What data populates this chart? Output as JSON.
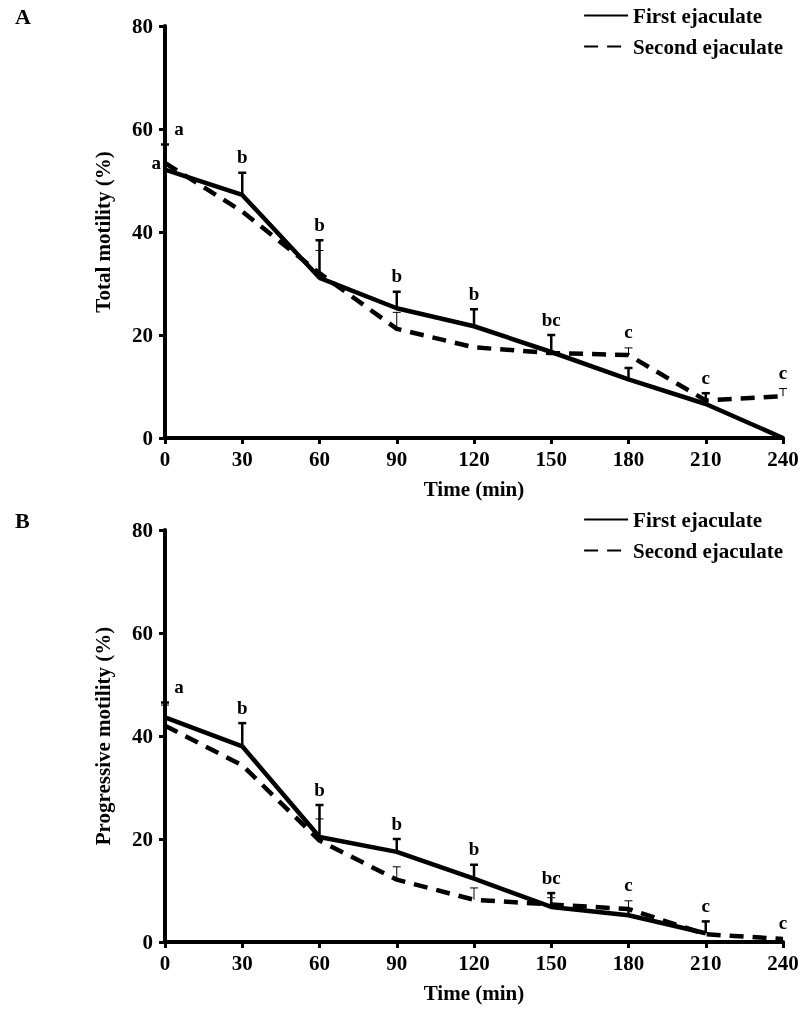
{
  "chart_data": [
    {
      "type": "line",
      "title": "A",
      "xlabel": "Time (min)",
      "ylabel": "Total motility (%)",
      "x": [
        0,
        30,
        60,
        90,
        120,
        150,
        180,
        210,
        240
      ],
      "xlim": [
        0,
        240
      ],
      "xticks": [
        0,
        30,
        60,
        90,
        120,
        150,
        180,
        210,
        240
      ],
      "ylim": [
        0,
        80
      ],
      "yticks": [
        0,
        20,
        40,
        60,
        80
      ],
      "grid": false,
      "legend": "top right",
      "marker": "none",
      "series": [
        {
          "name": "First ejaculate",
          "color": "#000000",
          "line_style": "solid",
          "values": [
            52.1,
            47.2,
            31.1,
            25.2,
            21.7,
            16.7,
            11.4,
            6.6,
            0
          ],
          "errors": [
            [
              52.1,
              57
            ],
            [
              47.2,
              51.5
            ],
            [
              31.1,
              38.4
            ],
            [
              25.2,
              28.4
            ],
            [
              21.7,
              25
            ],
            [
              16.7,
              20
            ],
            [
              11.4,
              13.6
            ],
            [
              6.6,
              8.7
            ],
            null
          ]
        },
        {
          "name": "Second ejaculate",
          "color": "#000000",
          "line_style": "dashed",
          "values": [
            53.4,
            44,
            32,
            21.2,
            17.6,
            16.5,
            16.1,
            7.3,
            8.1
          ],
          "errors": [
            [
              53.4,
              57
            ],
            null,
            [
              32,
              36.4
            ],
            [
              21.2,
              24.4
            ],
            null,
            null,
            [
              16.1,
              17.5
            ],
            [
              7.3,
              8.7
            ],
            [
              8.1,
              9.6
            ]
          ]
        }
      ],
      "annotations": [
        {
          "text": "a",
          "x": 0,
          "y": 57
        },
        {
          "text": "a",
          "x": 0,
          "y": 53.4
        },
        {
          "text": "b",
          "x": 30,
          "y": 51.5
        },
        {
          "text": "b",
          "x": 60,
          "y": 38.4
        },
        {
          "text": "b",
          "x": 90,
          "y": 28.4
        },
        {
          "text": "b",
          "x": 120,
          "y": 25
        },
        {
          "text": "bc",
          "x": 150,
          "y": 20
        },
        {
          "text": "c",
          "x": 180,
          "y": 17.5
        },
        {
          "text": "c",
          "x": 210,
          "y": 8.7
        },
        {
          "text": "c",
          "x": 240,
          "y": 9.6
        }
      ]
    },
    {
      "type": "line",
      "title": "B",
      "xlabel": "Time (min)",
      "ylabel": "Progressive motility (%)",
      "x": [
        0,
        30,
        60,
        90,
        120,
        150,
        180,
        210,
        240
      ],
      "xlim": [
        0,
        240
      ],
      "xticks": [
        0,
        30,
        60,
        90,
        120,
        150,
        180,
        210,
        240
      ],
      "ylim": [
        0,
        80
      ],
      "yticks": [
        0,
        20,
        40,
        60,
        80
      ],
      "grid": false,
      "legend": "top right",
      "marker": "none",
      "series": [
        {
          "name": "First ejaculate",
          "color": "#000000",
          "line_style": "solid",
          "values": [
            43.6,
            38,
            20.4,
            17.5,
            12.3,
            6.8,
            5.2,
            1.7,
            null
          ],
          "errors": [
            [
              43.6,
              46.5
            ],
            [
              38,
              42.5
            ],
            [
              20.4,
              26.6
            ],
            [
              17.5,
              20
            ],
            [
              12.3,
              15
            ],
            [
              6.8,
              9.5
            ],
            [
              5.2,
              6.4
            ],
            [
              1.7,
              4
            ],
            null
          ]
        },
        {
          "name": "Second ejaculate",
          "color": "#000000",
          "line_style": "dashed",
          "values": [
            42,
            34.3,
            19.7,
            12.1,
            8.2,
            7.3,
            6.4,
            1.5,
            0.6
          ],
          "errors": [
            [
              42,
              46
            ],
            null,
            [
              19.7,
              23.9
            ],
            [
              12.1,
              14.6
            ],
            [
              8.2,
              10.5
            ],
            [
              7.3,
              8.6
            ],
            [
              6.4,
              8
            ],
            null,
            null
          ]
        }
      ],
      "annotations": [
        {
          "text": "a",
          "x": 0,
          "y": 46.5
        },
        {
          "text": "b",
          "x": 30,
          "y": 42.5
        },
        {
          "text": "b",
          "x": 60,
          "y": 26.6
        },
        {
          "text": "b",
          "x": 90,
          "y": 20
        },
        {
          "text": "b",
          "x": 120,
          "y": 15
        },
        {
          "text": "bc",
          "x": 150,
          "y": 9.5
        },
        {
          "text": "c",
          "x": 180,
          "y": 8
        },
        {
          "text": "c",
          "x": 210,
          "y": 4
        },
        {
          "text": "c",
          "x": 240,
          "y": 0.6
        }
      ]
    }
  ]
}
